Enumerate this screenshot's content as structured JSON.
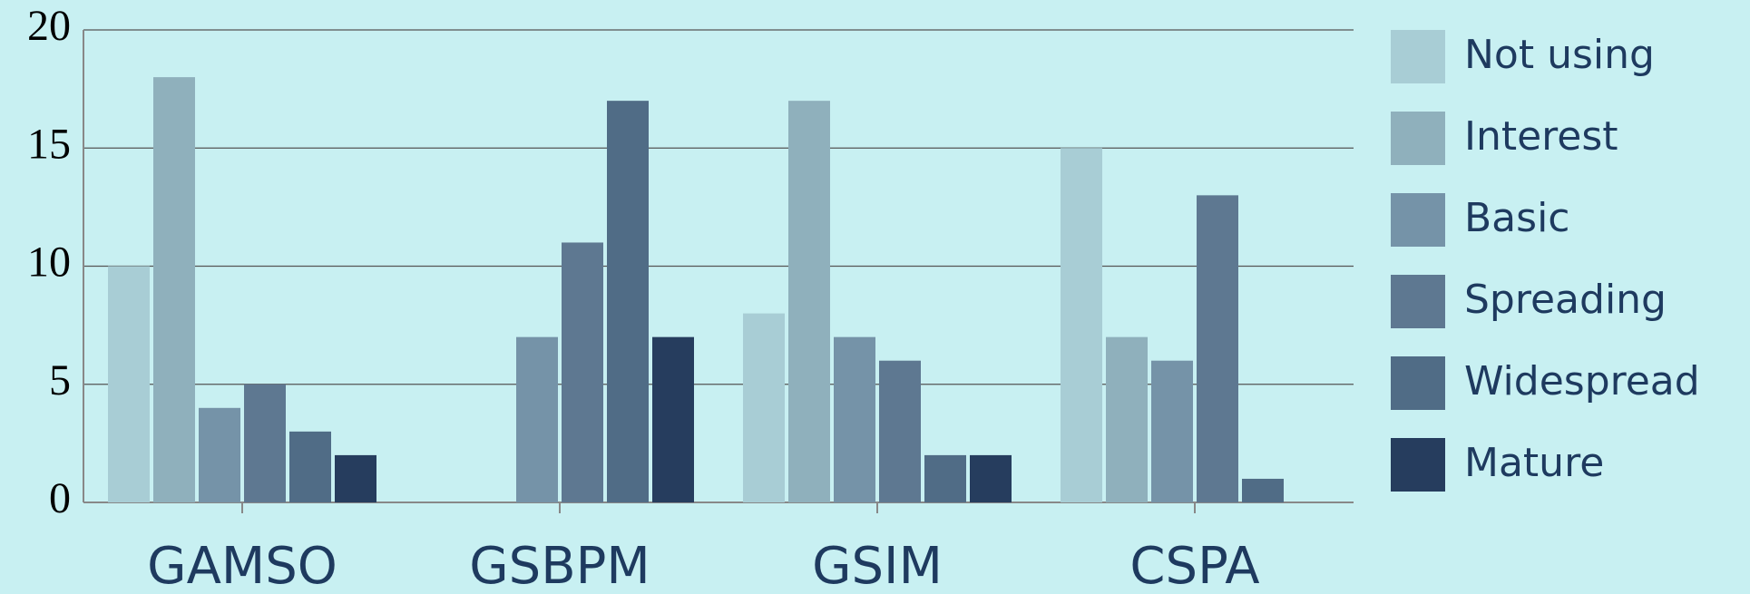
{
  "chart_data": {
    "type": "bar",
    "categories": [
      "GAMSO",
      "GSBPM",
      "GSIM",
      "CSPA"
    ],
    "series": [
      {
        "name": "Not using",
        "color": "#a8cdd5",
        "values": [
          10,
          0,
          8,
          15
        ]
      },
      {
        "name": "Interest",
        "color": "#8fb0bc",
        "values": [
          18,
          0,
          17,
          7
        ]
      },
      {
        "name": "Basic",
        "color": "#7593a8",
        "values": [
          4,
          7,
          7,
          6
        ]
      },
      {
        "name": "Spreading",
        "color": "#5e7891",
        "values": [
          5,
          11,
          6,
          13
        ]
      },
      {
        "name": "Widespread",
        "color": "#506c86",
        "values": [
          3,
          17,
          2,
          1
        ]
      },
      {
        "name": "Mature",
        "color": "#263d5e",
        "values": [
          2,
          7,
          2,
          0
        ]
      }
    ],
    "ylim": [
      0,
      20
    ],
    "yticks": [
      0,
      5,
      10,
      15,
      20
    ],
    "grid": true,
    "legend": "right"
  }
}
